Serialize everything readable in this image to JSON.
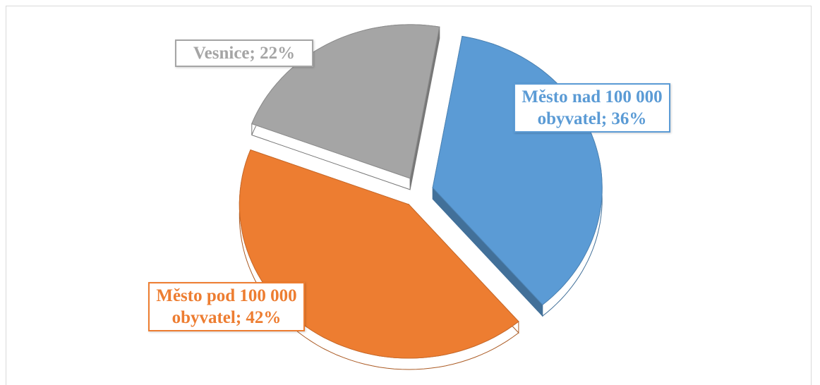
{
  "chart_data": {
    "type": "pie",
    "categories": [
      "Město nad 100 000 obyvatel",
      "Město pod 100 000 obyvatel",
      "Vesnice"
    ],
    "values": [
      36,
      42,
      22
    ],
    "value_labels": [
      "36%",
      "42%",
      "22%"
    ],
    "colors": [
      "#5b9bd5",
      "#ed7d31",
      "#a5a5a5"
    ]
  }
}
